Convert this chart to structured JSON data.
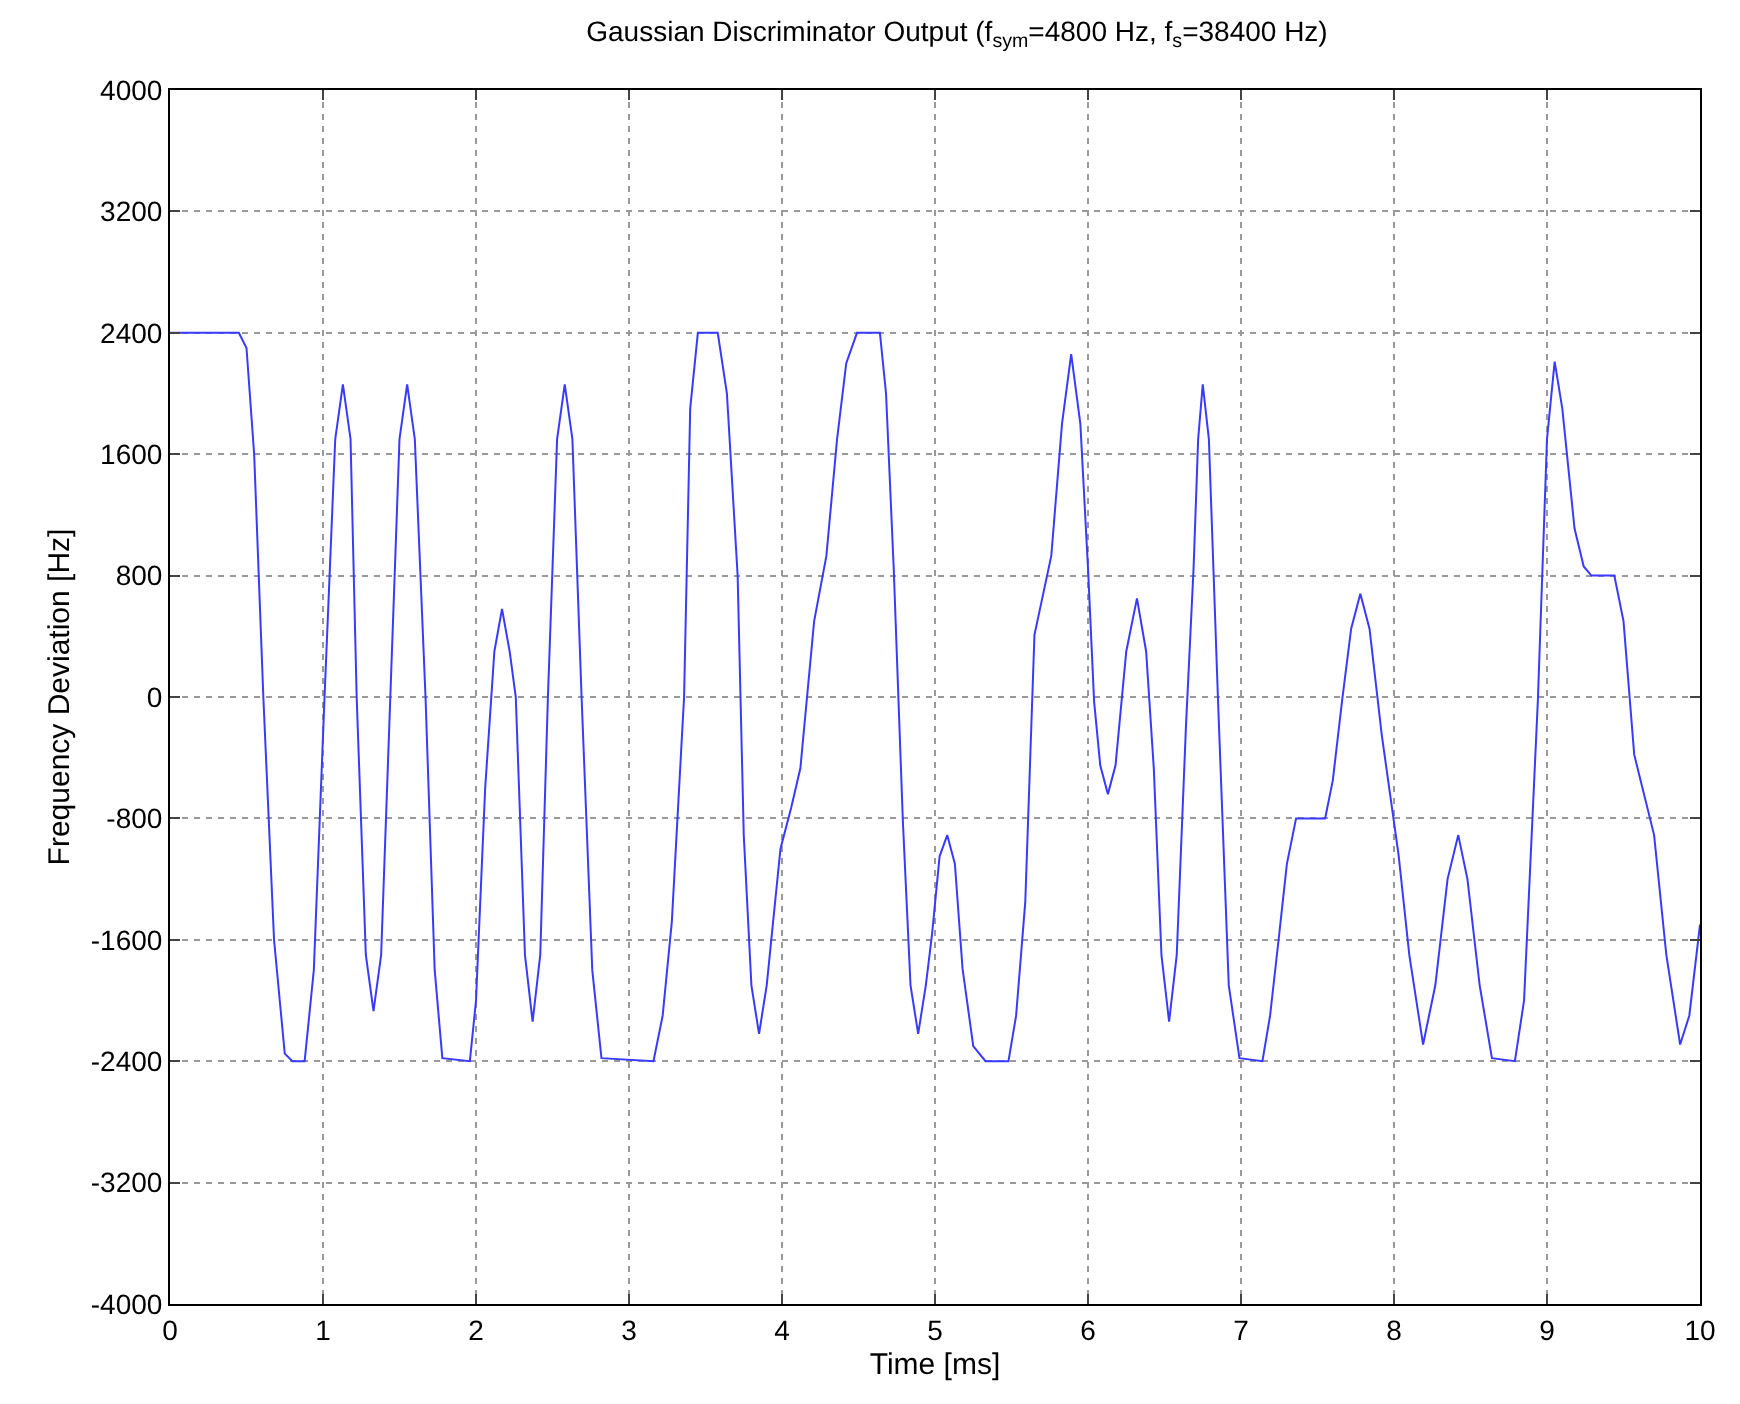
{
  "chart_data": {
    "type": "line",
    "title": "Gaussian Discriminator Output (f$_{sym}$=4800 Hz, f$_{s}$=38400 Hz)",
    "xlabel": "Time [ms]",
    "ylabel": "Frequency Deviation [Hz]",
    "xlim": [
      0,
      10
    ],
    "xticks": [
      0,
      1,
      2,
      3,
      4,
      5,
      6,
      7,
      8,
      9,
      10
    ],
    "ylim": [
      -4000,
      4000
    ],
    "yticks": [
      -4000,
      -3200,
      -2400,
      -1600,
      -800,
      0,
      800,
      1600,
      2400,
      3200,
      4000
    ],
    "grid": true,
    "marker": "none",
    "line_style": "solid",
    "series": [
      {
        "color": "#3a3aff",
        "x": [
          0,
          0.45,
          0.5,
          0.55,
          0.61,
          0.68,
          0.75,
          0.8,
          0.88,
          0.94,
          1.01,
          1.08,
          1.13,
          1.18,
          1.22,
          1.28,
          1.33,
          1.38,
          1.44,
          1.5,
          1.55,
          1.6,
          1.67,
          1.73,
          1.78,
          1.96,
          2.0,
          2.06,
          2.12,
          2.17,
          2.22,
          2.26,
          2.32,
          2.37,
          2.42,
          2.47,
          2.53,
          2.58,
          2.63,
          2.69,
          2.76,
          2.82,
          3.16,
          3.22,
          3.28,
          3.36,
          3.4,
          3.45,
          3.58,
          3.64,
          3.71,
          3.75,
          3.8,
          3.85,
          3.9,
          3.99,
          4.06,
          4.12,
          4.21,
          4.29,
          4.36,
          4.42,
          4.49,
          4.64,
          4.68,
          4.73,
          4.79,
          4.84,
          4.89,
          4.94,
          4.98,
          5.03,
          5.08,
          5.13,
          5.18,
          5.25,
          5.33,
          5.48,
          5.53,
          5.59,
          5.65,
          5.76,
          5.83,
          5.89,
          5.95,
          6.0,
          6.04,
          6.08,
          6.13,
          6.18,
          6.25,
          6.32,
          6.38,
          6.43,
          6.48,
          6.53,
          6.58,
          6.64,
          6.69,
          6.72,
          6.75,
          6.79,
          6.85,
          6.92,
          6.99,
          7.14,
          7.19,
          7.25,
          7.3,
          7.36,
          7.55,
          7.6,
          7.66,
          7.72,
          7.78,
          7.84,
          7.92,
          8.03,
          8.1,
          8.19,
          8.27,
          8.35,
          8.42,
          8.48,
          8.56,
          8.64,
          8.79,
          8.85,
          8.94,
          9.0,
          9.05,
          9.1,
          9.18,
          9.24,
          9.29,
          9.44,
          9.5,
          9.57,
          9.7,
          9.78,
          9.87,
          9.93,
          10.0
        ],
        "values": [
          2400,
          2400,
          2300,
          1600,
          0,
          -1600,
          -2350,
          -2400,
          -2400,
          -1800,
          0,
          1700,
          2060,
          1700,
          0,
          -1700,
          -2070,
          -1700,
          0,
          1700,
          2060,
          1700,
          0,
          -1800,
          -2380,
          -2400,
          -2000,
          -600,
          300,
          580,
          300,
          0,
          -1700,
          -2140,
          -1700,
          0,
          1700,
          2060,
          1700,
          0,
          -1800,
          -2380,
          -2400,
          -2100,
          -1480,
          0,
          1900,
          2400,
          2400,
          2000,
          800,
          -910,
          -1900,
          -2220,
          -1900,
          -1000,
          -730,
          -470,
          500,
          930,
          1700,
          2200,
          2400,
          2400,
          2000,
          850,
          -820,
          -1900,
          -2220,
          -1900,
          -1570,
          -1050,
          -910,
          -1100,
          -1790,
          -2300,
          -2400,
          -2400,
          -2100,
          -1350,
          410,
          930,
          1800,
          2260,
          1800,
          850,
          -30,
          -450,
          -640,
          -450,
          300,
          650,
          300,
          -470,
          -1700,
          -2140,
          -1700,
          -200,
          850,
          1700,
          2060,
          1700,
          -30,
          -1900,
          -2380,
          -2400,
          -2100,
          -1560,
          -1100,
          -800,
          -800,
          -550,
          -30,
          450,
          680,
          450,
          -250,
          -1040,
          -1700,
          -2290,
          -1900,
          -1200,
          -910,
          -1200,
          -1900,
          -2380,
          -2400,
          -2000,
          -30,
          1700,
          2210,
          1900,
          1110,
          860,
          800,
          800,
          500,
          -380,
          -910,
          -1700,
          -2290,
          -2100,
          -1500
        ]
      }
    ]
  }
}
